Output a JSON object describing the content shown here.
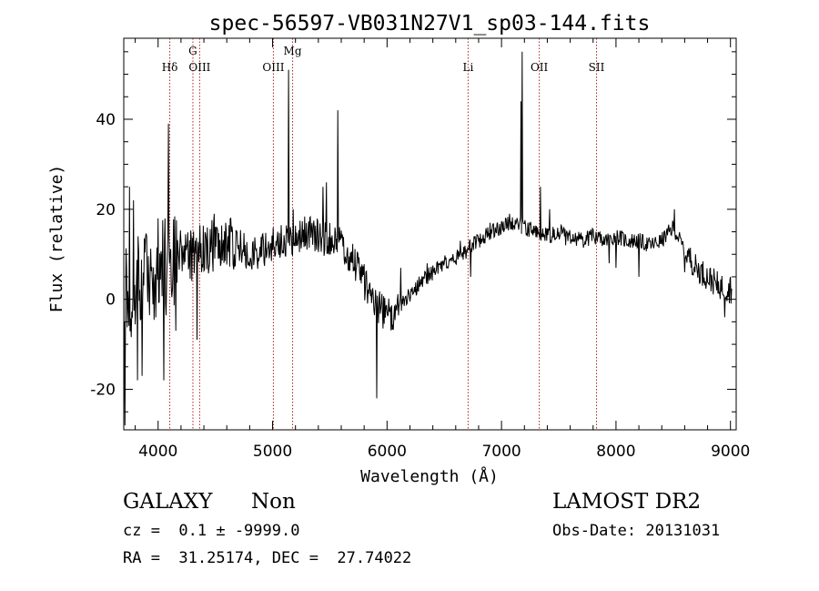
{
  "chart_data": {
    "type": "line",
    "title": "spec-56597-VB031N27V1_sp03-144.fits",
    "xlabel": "Wavelength (Å)",
    "ylabel": "Flux (relative)",
    "xlim": [
      3700,
      9050
    ],
    "ylim": [
      -29,
      58
    ],
    "xticks": [
      4000,
      5000,
      6000,
      7000,
      8000,
      9000
    ],
    "xtick_labels": [
      "4000",
      "5000",
      "6000",
      "7000",
      "8000",
      "9000"
    ],
    "yticks": [
      -20,
      0,
      20,
      40
    ],
    "ytick_labels": [
      "-20",
      "0",
      "20",
      "40"
    ],
    "grid": false,
    "line_color": "#000000",
    "marker_color": "#b22222",
    "lines": [
      {
        "label": "Hδ",
        "x": 4102,
        "row": "low"
      },
      {
        "label": "G",
        "x": 4304,
        "row": "high"
      },
      {
        "label": "OIII",
        "x": 4363,
        "row": "low"
      },
      {
        "label": "OIII",
        "x": 5007,
        "row": "low"
      },
      {
        "label": "Mg",
        "x": 5175,
        "row": "high"
      },
      {
        "label": "Li",
        "x": 6708,
        "row": "low"
      },
      {
        "label": "OII",
        "x": 7330,
        "row": "low"
      },
      {
        "label": "SII",
        "x": 7830,
        "row": "low"
      }
    ],
    "continuum": [
      [
        3700,
        0
      ],
      [
        3800,
        3
      ],
      [
        3900,
        4
      ],
      [
        4000,
        6
      ],
      [
        4100,
        8
      ],
      [
        4200,
        9
      ],
      [
        4300,
        10
      ],
      [
        4400,
        11
      ],
      [
        4500,
        12
      ],
      [
        4600,
        13
      ],
      [
        4700,
        12
      ],
      [
        4800,
        10
      ],
      [
        4900,
        11
      ],
      [
        5000,
        12
      ],
      [
        5100,
        13
      ],
      [
        5200,
        14
      ],
      [
        5300,
        15
      ],
      [
        5400,
        14
      ],
      [
        5500,
        13
      ],
      [
        5600,
        12
      ],
      [
        5700,
        9
      ],
      [
        5800,
        4
      ],
      [
        5900,
        -1
      ],
      [
        6000,
        -4
      ],
      [
        6100,
        -2
      ],
      [
        6200,
        1
      ],
      [
        6300,
        4
      ],
      [
        6400,
        6
      ],
      [
        6500,
        8
      ],
      [
        6600,
        9
      ],
      [
        6700,
        11
      ],
      [
        6800,
        13
      ],
      [
        6900,
        15
      ],
      [
        7000,
        16
      ],
      [
        7100,
        17
      ],
      [
        7200,
        16
      ],
      [
        7300,
        15
      ],
      [
        7400,
        14
      ],
      [
        7500,
        15
      ],
      [
        7600,
        14
      ],
      [
        7700,
        13
      ],
      [
        7800,
        14
      ],
      [
        7900,
        13
      ],
      [
        8000,
        14
      ],
      [
        8100,
        13
      ],
      [
        8200,
        13
      ],
      [
        8300,
        12
      ],
      [
        8400,
        13
      ],
      [
        8500,
        16
      ],
      [
        8600,
        11
      ],
      [
        8700,
        7
      ],
      [
        8800,
        5
      ],
      [
        8900,
        3
      ],
      [
        9000,
        2
      ]
    ],
    "features": [
      [
        3710,
        -28
      ],
      [
        3750,
        25
      ],
      [
        3785,
        22
      ],
      [
        3820,
        -18
      ],
      [
        3860,
        -17
      ],
      [
        3900,
        14
      ],
      [
        4000,
        18
      ],
      [
        4050,
        -18
      ],
      [
        4090,
        39
      ],
      [
        4155,
        -7
      ],
      [
        4230,
        12
      ],
      [
        4340,
        -9
      ],
      [
        4490,
        19
      ],
      [
        4510,
        16
      ],
      [
        4590,
        17
      ],
      [
        5140,
        51
      ],
      [
        5180,
        20
      ],
      [
        5440,
        25
      ],
      [
        5470,
        26
      ],
      [
        5570,
        42
      ],
      [
        5910,
        -22
      ],
      [
        6120,
        7
      ],
      [
        6350,
        8
      ],
      [
        6510,
        9
      ],
      [
        6640,
        13
      ],
      [
        6730,
        5
      ],
      [
        6760,
        14
      ],
      [
        6900,
        17
      ],
      [
        7070,
        19
      ],
      [
        7170,
        44
      ],
      [
        7180,
        55
      ],
      [
        7230,
        17
      ],
      [
        7340,
        25
      ],
      [
        7420,
        20
      ],
      [
        7560,
        12
      ],
      [
        7940,
        8
      ],
      [
        8000,
        7
      ],
      [
        8200,
        5
      ],
      [
        8510,
        20
      ],
      [
        8600,
        6
      ],
      [
        8780,
        4
      ],
      [
        8880,
        2
      ],
      [
        8950,
        -4
      ],
      [
        9000,
        5
      ]
    ]
  },
  "info": {
    "object_class": "GALAXY",
    "subclass": "Non",
    "survey": "LAMOST DR2",
    "redshift": "cz =  0.1 ± -9999.0",
    "obs_date": "Obs-Date: 20131031",
    "coords": "RA =  31.25174, DEC =  27.74022"
  }
}
